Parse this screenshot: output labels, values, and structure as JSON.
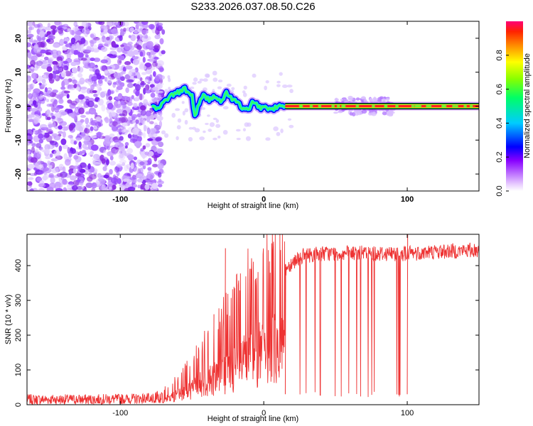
{
  "title": "S233.2026.037.08.50.C26",
  "chart_data": [
    {
      "type": "heatmap",
      "title": "S233.2026.037.08.50.C26",
      "xlabel": "Height of straight line (km)",
      "ylabel": "Frequency (Hz)",
      "xlim": [
        -165,
        150
      ],
      "ylim": [
        -25,
        25
      ],
      "x_ticks": [
        -100,
        0,
        100
      ],
      "x_tick_labels": [
        "-100",
        "0",
        "100"
      ],
      "y_ticks": [
        20,
        10,
        0,
        -10,
        -20
      ],
      "y_tick_labels": [
        "20",
        "10",
        "0",
        "-10",
        "-20"
      ],
      "colorbar": {
        "label": "Normalized spectral amplitude",
        "range": [
          0,
          1
        ],
        "ticks": [
          0.0,
          0.2,
          0.4,
          0.6,
          0.8
        ],
        "tick_labels": [
          "0.0",
          "0.2",
          "0.4",
          "0.6",
          "0.8"
        ]
      },
      "description_trace": {
        "x": [
          -78,
          -74,
          -70,
          -65,
          -60,
          -55,
          -50,
          -48,
          -45,
          -42,
          -38,
          -34,
          -30,
          -26,
          -22,
          -18,
          -14,
          -10,
          -8,
          -5,
          -2,
          0,
          2,
          5,
          8,
          12,
          15,
          20,
          40,
          60,
          80,
          100,
          120,
          150
        ],
        "y": [
          0,
          -1,
          1,
          3,
          4,
          5,
          3,
          -3,
          1,
          3,
          2,
          3,
          1,
          4,
          2,
          1,
          -1,
          -1,
          1,
          0.5,
          -0.5,
          0,
          -0.5,
          -1,
          -0.5,
          0,
          0,
          0,
          0,
          0,
          0,
          0,
          0,
          0
        ]
      }
    },
    {
      "type": "line",
      "xlabel": "Height of straight line (km)",
      "ylabel": "SNR (10 * v/v)",
      "xlim": [
        -165,
        150
      ],
      "ylim": [
        0,
        490
      ],
      "x_ticks": [
        -100,
        0,
        100
      ],
      "x_tick_labels": [
        "-100",
        "0",
        "100"
      ],
      "y_ticks": [
        0,
        100,
        200,
        300,
        400
      ],
      "y_tick_labels": [
        "0",
        "100",
        "200",
        "300",
        "400"
      ],
      "series": [
        {
          "name": "SNR",
          "color": "#ee3333",
          "envelope_x": [
            -165,
            -120,
            -80,
            -70,
            -60,
            -50,
            -40,
            -30,
            -20,
            -10,
            0,
            10,
            15,
            20,
            25,
            30,
            40,
            60,
            80,
            100,
            120,
            150
          ],
          "envelope_y": [
            15,
            15,
            18,
            30,
            60,
            100,
            150,
            190,
            230,
            290,
            330,
            360,
            390,
            410,
            425,
            430,
            435,
            435,
            435,
            435,
            440,
            445
          ],
          "dip_value": 22,
          "dips_until_x": 105
        }
      ]
    }
  ],
  "colors": {
    "line": "#ee3333",
    "ridge_outer": "#0000ff",
    "ridge_core": "#ff2222"
  }
}
